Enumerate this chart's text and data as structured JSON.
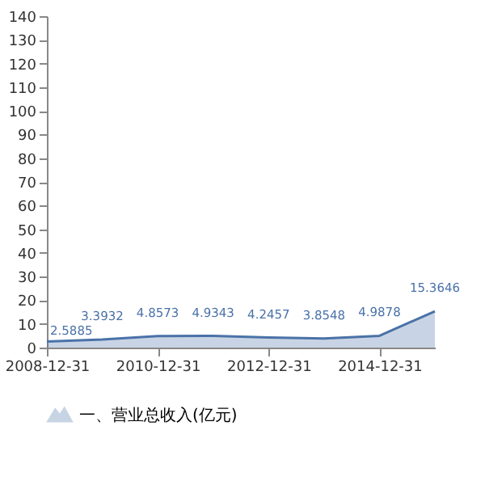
{
  "chart_data": {
    "type": "area",
    "x": [
      "2008-12-31",
      "2009-12-31",
      "2010-12-31",
      "2011-12-31",
      "2012-12-31",
      "2013-12-31",
      "2014-12-31",
      "2015-12-31"
    ],
    "series": [
      {
        "name": "一、营业总收入(亿元)",
        "color": "#4a72a8",
        "values": [
          2.5885,
          3.3932,
          4.8573,
          4.9343,
          4.2457,
          3.8548,
          4.9878,
          15.3646
        ]
      }
    ],
    "xlim": [
      "2008-12-31",
      "2015-12-31"
    ],
    "xticks": [
      "2008-12-31",
      "2010-12-31",
      "2012-12-31",
      "2014-12-31"
    ],
    "ylim": [
      0,
      140
    ],
    "yticks": [
      0,
      10,
      20,
      30,
      40,
      50,
      60,
      70,
      80,
      90,
      100,
      110,
      120,
      130,
      140
    ],
    "data_labels": true,
    "grid": false,
    "legend": "bottom"
  }
}
